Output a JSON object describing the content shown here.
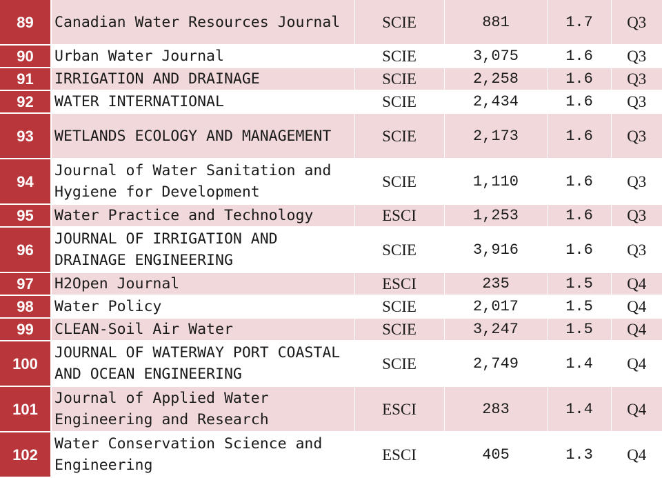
{
  "rows": [
    {
      "rank": "89",
      "title": "Canadian Water Resources Journal",
      "index": "SCIE",
      "cites": "881",
      "if": "1.7",
      "q": "Q3",
      "shade": "pink",
      "lines": 2
    },
    {
      "rank": "90",
      "title": "Urban Water Journal",
      "index": "SCIE",
      "cites": "3,075",
      "if": "1.6",
      "q": "Q3",
      "shade": "white",
      "lines": 1
    },
    {
      "rank": "91",
      "title": "IRRIGATION AND DRAINAGE",
      "index": "SCIE",
      "cites": "2,258",
      "if": "1.6",
      "q": "Q3",
      "shade": "pink",
      "lines": 1
    },
    {
      "rank": "92",
      "title": "WATER INTERNATIONAL",
      "index": "SCIE",
      "cites": "2,434",
      "if": "1.6",
      "q": "Q3",
      "shade": "white",
      "lines": 1
    },
    {
      "rank": "93",
      "title": "WETLANDS ECOLOGY AND MANAGEMENT",
      "index": "SCIE",
      "cites": "2,173",
      "if": "1.6",
      "q": "Q3",
      "shade": "pink",
      "lines": 2
    },
    {
      "rank": "94",
      "title": "Journal of Water Sanitation and Hygiene for Development",
      "index": "SCIE",
      "cites": "1,110",
      "if": "1.6",
      "q": "Q3",
      "shade": "white",
      "lines": 2
    },
    {
      "rank": "95",
      "title": "Water Practice and Technology",
      "index": "ESCI",
      "cites": "1,253",
      "if": "1.6",
      "q": "Q3",
      "shade": "pink",
      "lines": 1
    },
    {
      "rank": "96",
      "title": "JOURNAL OF IRRIGATION AND DRAINAGE ENGINEERING",
      "index": "SCIE",
      "cites": "3,916",
      "if": "1.6",
      "q": "Q3",
      "shade": "white",
      "lines": 2
    },
    {
      "rank": "97",
      "title": "H2Open Journal",
      "index": "ESCI",
      "cites": "235",
      "if": "1.5",
      "q": "Q4",
      "shade": "pink",
      "lines": 1
    },
    {
      "rank": "98",
      "title": "Water Policy",
      "index": "SCIE",
      "cites": "2,017",
      "if": "1.5",
      "q": "Q4",
      "shade": "white",
      "lines": 1
    },
    {
      "rank": "99",
      "title": "CLEAN-Soil Air Water",
      "index": "SCIE",
      "cites": "3,247",
      "if": "1.5",
      "q": "Q4",
      "shade": "pink",
      "lines": 1
    },
    {
      "rank": "100",
      "title": "JOURNAL OF WATERWAY PORT COASTAL AND OCEAN ENGINEERING",
      "index": "SCIE",
      "cites": "2,749",
      "if": "1.4",
      "q": "Q4",
      "shade": "white",
      "lines": 2
    },
    {
      "rank": "101",
      "title": "Journal of Applied Water Engineering and Research",
      "index": "ESCI",
      "cites": "283",
      "if": "1.4",
      "q": "Q4",
      "shade": "pink",
      "lines": 2
    },
    {
      "rank": "102",
      "title": "Water Conservation Science and Engineering",
      "index": "ESCI",
      "cites": "405",
      "if": "1.3",
      "q": "Q4",
      "shade": "white",
      "lines": 2
    }
  ]
}
